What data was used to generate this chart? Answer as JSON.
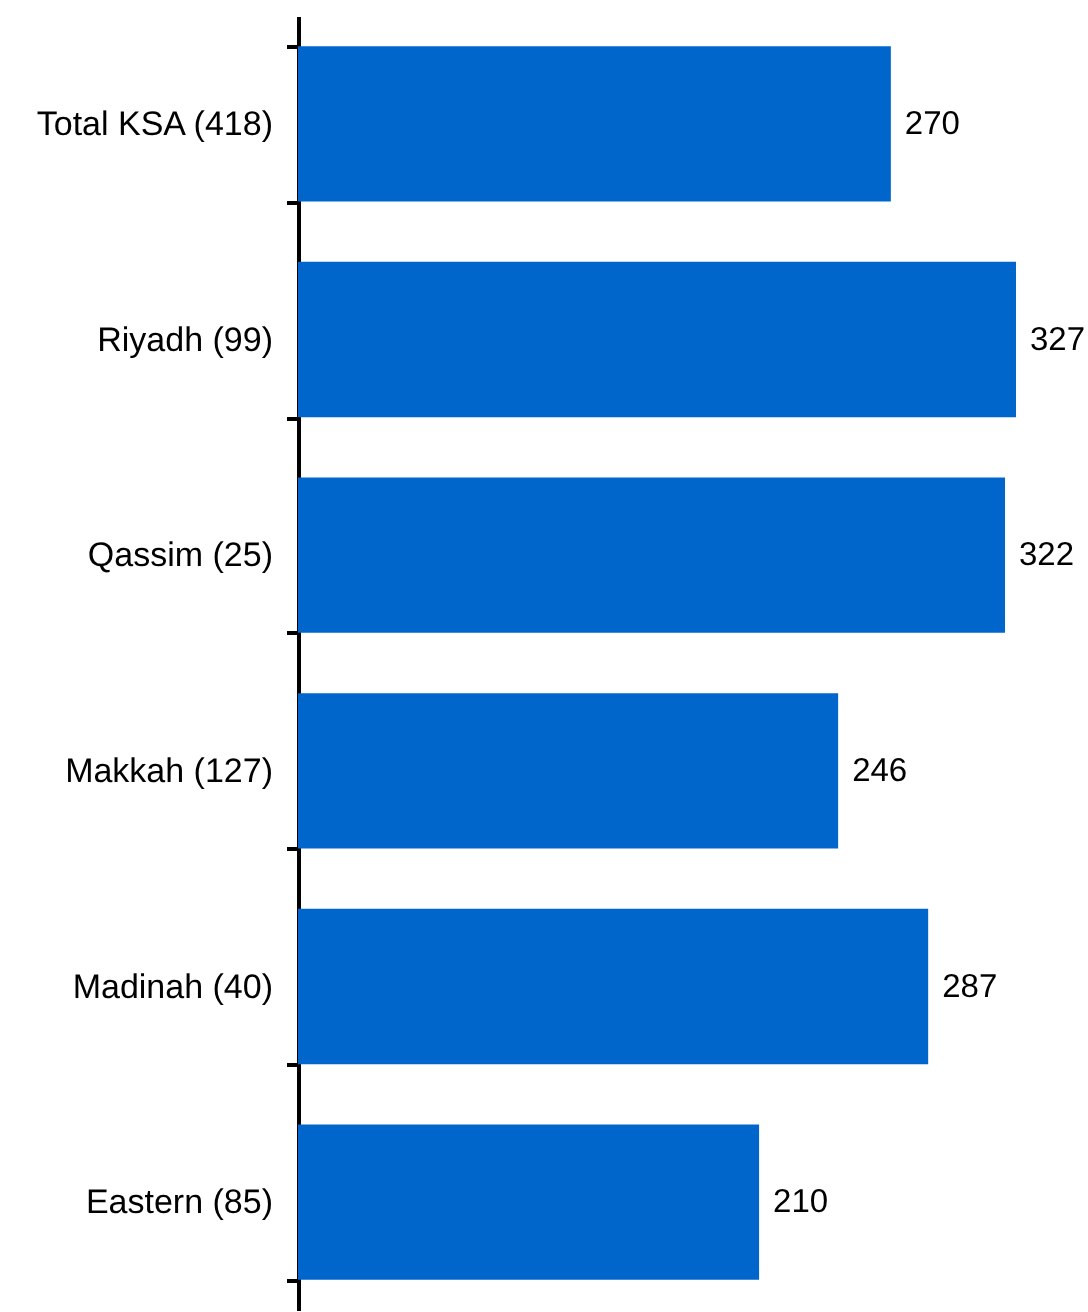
{
  "chart_data": {
    "type": "bar",
    "orientation": "horizontal",
    "categories": [
      "Total KSA (418)",
      "Riyadh (99)",
      "Qassim (25)",
      "Makkah (127)",
      "Madinah (40)",
      "Eastern (85)"
    ],
    "series": [
      {
        "color": "#0066cc",
        "values": [
          270,
          327,
          322,
          246,
          287,
          210
        ]
      }
    ],
    "data_labels": true,
    "tick_labels": "y"
  }
}
